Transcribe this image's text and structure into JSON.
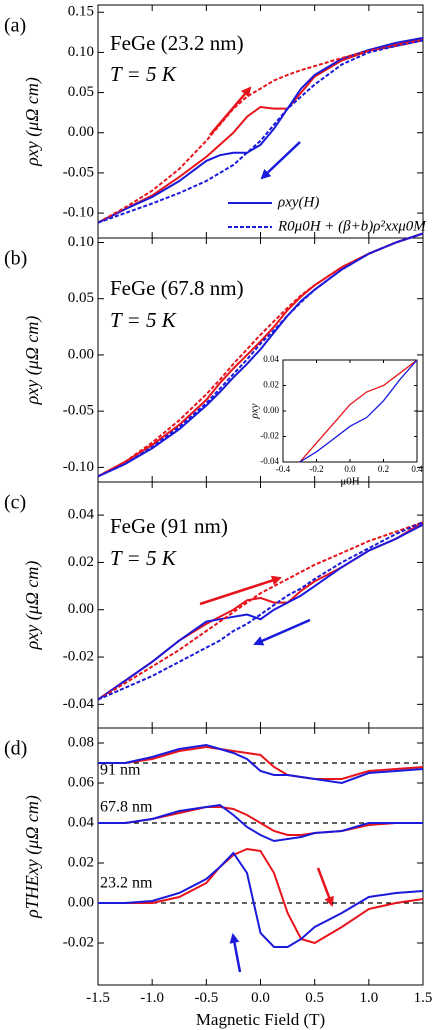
{
  "chart_data": [
    {
      "type": "line",
      "panel_label": "(a)",
      "annotations": [
        "FeGe (23.2 nm)",
        "T = 5 K"
      ],
      "ylabel": "ρxy (μΩ cm)",
      "xlim": [
        -1.5,
        1.5
      ],
      "xticks": [
        -1.5,
        {
          "value": -1,
          "label": "-1.0"
        },
        -0.5,
        {
          "value": 0,
          "label": "0.0"
        },
        0.5,
        {
          "value": 1,
          "label": "1.0"
        },
        1.5
      ],
      "ylim": [
        -0.131,
        0.159
      ],
      "yticks": [
        0.15,
        {
          "value": 0.1,
          "label": "0.10"
        },
        0.05,
        {
          "value": 0,
          "label": "0.00"
        },
        -0.05,
        {
          "value": -0.1,
          "label": "-0.10"
        }
      ],
      "x": [
        -1.5,
        -1.25,
        -1,
        -0.75,
        -0.5,
        -0.375,
        -0.25,
        -0.125,
        0,
        0.125,
        0.25,
        0.375,
        0.5,
        0.75,
        1,
        1.25,
        1.5
      ],
      "series": [
        {
          "color": "#e8141c",
          "dashed": false,
          "values": [
            -0.112,
            -0.095,
            -0.078,
            -0.055,
            -0.03,
            -0.015,
            0.0,
            0.02,
            0.032,
            0.03,
            0.03,
            0.05,
            0.07,
            0.09,
            0.102,
            0.11,
            0.117
          ]
        },
        {
          "color": "#1a1adc",
          "dashed": false,
          "values": [
            -0.112,
            -0.095,
            -0.08,
            -0.06,
            -0.035,
            -0.028,
            -0.025,
            -0.025,
            -0.015,
            0.005,
            0.03,
            0.055,
            0.072,
            0.092,
            0.103,
            0.112,
            0.118
          ]
        },
        {
          "color": "#e8141c",
          "dashed": true,
          "values": [
            -0.112,
            -0.093,
            -0.072,
            -0.045,
            -0.01,
            0.01,
            0.03,
            0.045,
            0.055,
            0.065,
            0.072,
            0.078,
            0.083,
            0.093,
            0.102,
            0.108,
            0.115
          ]
        },
        {
          "color": "#1a1adc",
          "dashed": true,
          "values": [
            -0.112,
            -0.1,
            -0.088,
            -0.075,
            -0.06,
            -0.05,
            -0.04,
            -0.025,
            -0.01,
            0.01,
            0.03,
            0.045,
            0.06,
            0.085,
            0.1,
            0.108,
            0.115
          ]
        }
      ],
      "legend": [
        {
          "label": "ρxy(H)",
          "color": "#1a1adc",
          "dashed": false
        },
        {
          "label": "R0μ0H + (β+b)ρ²xxμ0M",
          "color": "#1a1adc",
          "dashed": true
        }
      ]
    },
    {
      "type": "line",
      "panel_label": "(b)",
      "annotations": [
        "FeGe (67.8 nm)",
        "T = 5 K"
      ],
      "ylabel": "ρxy (μΩ cm)",
      "xlim": [
        -1.5,
        1.5
      ],
      "xticks": [
        -1.5,
        {
          "value": -1,
          "label": "-1.0"
        },
        -0.5,
        {
          "value": 0,
          "label": "0.0"
        },
        0.5,
        {
          "value": 1,
          "label": "1.0"
        },
        1.5
      ],
      "ylim": [
        -0.113,
        0.104
      ],
      "yticks": [
        {
          "value": 0.1,
          "label": "0.10"
        },
        0.05,
        {
          "value": 0,
          "label": "0.00"
        },
        -0.05,
        {
          "value": -0.1,
          "label": "-0.10"
        }
      ],
      "x": [
        -1.5,
        -1.25,
        -1,
        -0.75,
        -0.5,
        -0.375,
        -0.25,
        -0.125,
        0,
        0.125,
        0.25,
        0.375,
        0.5,
        0.75,
        1,
        1.25,
        1.5
      ],
      "series": [
        {
          "color": "#e8141c",
          "dashed": false,
          "values": [
            -0.108,
            -0.095,
            -0.08,
            -0.062,
            -0.04,
            -0.025,
            -0.012,
            0.0,
            0.012,
            0.025,
            0.04,
            0.052,
            0.062,
            0.078,
            0.09,
            0.1,
            0.108
          ]
        },
        {
          "color": "#1a1adc",
          "dashed": false,
          "values": [
            -0.108,
            -0.097,
            -0.083,
            -0.066,
            -0.045,
            -0.033,
            -0.02,
            -0.008,
            0.005,
            0.02,
            0.035,
            0.048,
            0.058,
            0.076,
            0.09,
            0.1,
            0.108
          ]
        },
        {
          "color": "#e8141c",
          "dashed": true,
          "values": [
            -0.108,
            -0.095,
            -0.078,
            -0.058,
            -0.035,
            -0.022,
            -0.008,
            0.005,
            0.018,
            0.03,
            0.042,
            0.053,
            0.062,
            0.078,
            0.09,
            0.1,
            0.108
          ]
        },
        {
          "color": "#1a1adc",
          "dashed": true,
          "values": [
            -0.108,
            -0.097,
            -0.082,
            -0.064,
            -0.043,
            -0.03,
            -0.017,
            -0.004,
            0.01,
            0.022,
            0.035,
            0.047,
            0.058,
            0.076,
            0.09,
            0.1,
            0.108
          ]
        }
      ],
      "inset": {
        "xlabel": "μ0H",
        "ylabel": "ρxy",
        "xlim": [
          -0.4,
          0.4
        ],
        "xticks": [
          -0.4,
          -0.2,
          {
            "value": 0,
            "label": "0.0"
          },
          0.2,
          0.4
        ],
        "ylim": [
          -0.04,
          0.04
        ],
        "yticks": [
          0.04,
          0.02,
          {
            "value": 0,
            "label": "0.00"
          },
          -0.02,
          -0.04
        ],
        "x": [
          -0.3,
          -0.2,
          -0.1,
          0,
          0.1,
          0.2,
          0.3,
          0.4
        ],
        "series": [
          {
            "color": "#e8141c",
            "values": [
              -0.04,
              -0.025,
              -0.01,
              0.005,
              0.015,
              0.02,
              0.03,
              0.04
            ]
          },
          {
            "color": "#1a1adc",
            "values": [
              -0.04,
              -0.032,
              -0.022,
              -0.012,
              -0.005,
              0.008,
              0.025,
              0.04
            ]
          }
        ]
      }
    },
    {
      "type": "line",
      "panel_label": "(c)",
      "annotations": [
        "FeGe (91 nm)",
        "T = 5 K"
      ],
      "ylabel": "ρxy (μΩ cm)",
      "xlim": [
        -1.5,
        1.5
      ],
      "xticks": [
        -1.5,
        {
          "value": -1,
          "label": "-1.0"
        },
        -0.5,
        {
          "value": 0,
          "label": "0.0"
        },
        0.5,
        {
          "value": 1,
          "label": "1.0"
        },
        1.5
      ],
      "ylim": [
        -0.05,
        0.054
      ],
      "yticks": [
        0.04,
        0.02,
        {
          "value": 0,
          "label": "0.00"
        },
        -0.02,
        -0.04
      ],
      "x": [
        -1.5,
        -1.25,
        -1,
        -0.75,
        -0.5,
        -0.375,
        -0.25,
        -0.125,
        0,
        0.125,
        0.25,
        0.375,
        0.5,
        0.75,
        1,
        1.25,
        1.5
      ],
      "series": [
        {
          "color": "#e8141c",
          "dashed": false,
          "values": [
            -0.038,
            -0.03,
            -0.022,
            -0.013,
            -0.006,
            -0.003,
            0.0,
            0.004,
            0.005,
            0.003,
            0.003,
            0.008,
            0.012,
            0.018,
            0.025,
            0.03,
            0.037
          ]
        },
        {
          "color": "#1a1adc",
          "dashed": false,
          "values": [
            -0.038,
            -0.03,
            -0.022,
            -0.013,
            -0.005,
            -0.004,
            -0.003,
            -0.002,
            -0.004,
            0.0,
            0.003,
            0.006,
            0.01,
            0.018,
            0.025,
            0.03,
            0.036
          ]
        },
        {
          "color": "#e8141c",
          "dashed": true,
          "values": [
            -0.038,
            -0.031,
            -0.024,
            -0.017,
            -0.009,
            -0.005,
            -0.001,
            0.003,
            0.007,
            0.01,
            0.013,
            0.016,
            0.019,
            0.024,
            0.029,
            0.033,
            0.037
          ]
        },
        {
          "color": "#1a1adc",
          "dashed": true,
          "values": [
            -0.038,
            -0.033,
            -0.028,
            -0.022,
            -0.016,
            -0.013,
            -0.009,
            -0.006,
            -0.002,
            0.002,
            0.006,
            0.009,
            0.013,
            0.02,
            0.026,
            0.032,
            0.037
          ]
        }
      ]
    },
    {
      "type": "line",
      "panel_label": "(d)",
      "ylabel": "ρTHExy (μΩ cm)",
      "xlabel": "Magnetic Field (T)",
      "curve_labels": [
        "91 nm",
        "67.8 nm",
        "23.2 nm"
      ],
      "hlines": [
        0.07,
        0.04,
        0
      ],
      "xlim": [
        -1.5,
        1.5
      ],
      "xticks": [
        -1.5,
        {
          "value": -1,
          "label": "-1.0"
        },
        -0.5,
        {
          "value": 0,
          "label": "0.0"
        },
        0.5,
        {
          "value": 1,
          "label": "1.0"
        },
        1.5
      ],
      "ylim": [
        -0.041,
        0.0875
      ],
      "yticks": [
        0.08,
        0.06,
        0.04,
        0.02,
        {
          "value": 0,
          "label": "0.00"
        },
        -0.02
      ],
      "x": [
        -1.5,
        -1.25,
        -1,
        -0.75,
        -0.5,
        -0.375,
        -0.25,
        -0.125,
        0,
        0.125,
        0.25,
        0.375,
        0.5,
        0.75,
        1,
        1.25,
        1.5
      ],
      "series": [
        {
          "color": "#e8141c",
          "dashed": false,
          "values": [
            0.07,
            0.07,
            0.072,
            0.076,
            0.078,
            0.077,
            0.076,
            0.075,
            0.074,
            0.068,
            0.064,
            0.063,
            0.062,
            0.062,
            0.066,
            0.067,
            0.068
          ]
        },
        {
          "color": "#1a1adc",
          "dashed": false,
          "values": [
            0.07,
            0.07,
            0.073,
            0.077,
            0.079,
            0.077,
            0.075,
            0.072,
            0.066,
            0.064,
            0.064,
            0.063,
            0.062,
            0.06,
            0.065,
            0.066,
            0.067
          ]
        },
        {
          "color": "#e8141c",
          "dashed": false,
          "values": [
            0.04,
            0.04,
            0.042,
            0.045,
            0.048,
            0.048,
            0.047,
            0.044,
            0.04,
            0.036,
            0.034,
            0.034,
            0.035,
            0.036,
            0.039,
            0.04,
            0.04
          ]
        },
        {
          "color": "#1a1adc",
          "dashed": false,
          "values": [
            0.04,
            0.04,
            0.042,
            0.046,
            0.048,
            0.049,
            0.044,
            0.038,
            0.034,
            0.031,
            0.032,
            0.033,
            0.035,
            0.036,
            0.04,
            0.04,
            0.04
          ]
        },
        {
          "color": "#e8141c",
          "dashed": false,
          "values": [
            0,
            0,
            0,
            0.003,
            0.01,
            0.018,
            0.024,
            0.027,
            0.026,
            0.015,
            -0.005,
            -0.018,
            -0.02,
            -0.012,
            -0.003,
            0,
            0.002
          ]
        },
        {
          "color": "#1a1adc",
          "dashed": false,
          "values": [
            0,
            0,
            0.001,
            0.005,
            0.012,
            0.018,
            0.025,
            0.015,
            -0.015,
            -0.022,
            -0.022,
            -0.018,
            -0.012,
            -0.005,
            0.003,
            0.005,
            0.006
          ]
        }
      ]
    }
  ]
}
